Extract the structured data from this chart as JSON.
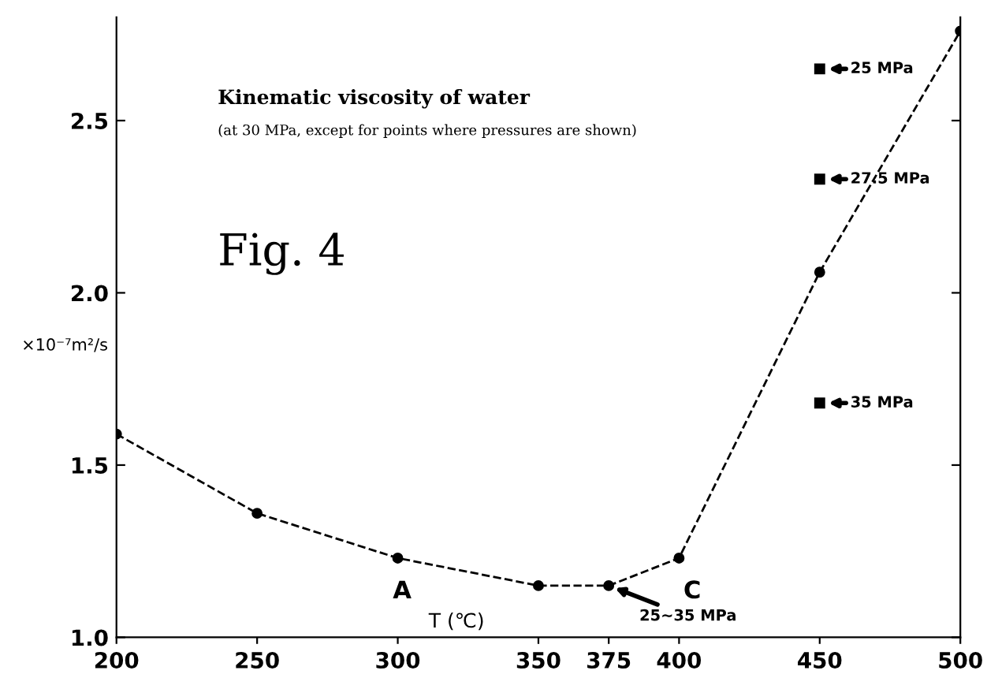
{
  "chart_data": {
    "type": "line",
    "title": "Kinematic viscosity of water",
    "subtitle": "(at 30 MPa, except for points where pressures are shown)",
    "xlabel": "T (℃)",
    "ylabel": "×10⁻⁷m²/s",
    "x": [
      200,
      250,
      300,
      350,
      375,
      400,
      450,
      500
    ],
    "series": [
      {
        "color": "#000000",
        "marker": "circle",
        "line_style": "dashed",
        "values": [
          1.59,
          1.36,
          1.23,
          1.15,
          1.15,
          1.23,
          2.06,
          2.76
        ]
      },
      {
        "type": "scatter",
        "color": "#000000",
        "marker": "square",
        "values": [
          null,
          null,
          null,
          null,
          null,
          null,
          2.65,
          null
        ]
      },
      {
        "type": "scatter",
        "color": "#000000",
        "marker": "square",
        "values": [
          null,
          null,
          null,
          null,
          null,
          null,
          2.33,
          null
        ]
      },
      {
        "type": "scatter",
        "color": "#000000",
        "marker": "square",
        "values": [
          null,
          null,
          null,
          null,
          null,
          null,
          1.68,
          null
        ]
      }
    ],
    "annotations": [
      "Fig. 4",
      {
        "text": "A",
        "x": 300,
        "y": 1.23
      },
      {
        "text": "C",
        "x": 400,
        "y": 1.23
      },
      {
        "text": "25~35 MPa",
        "x": 375,
        "y": 1.15
      },
      {
        "text": "25 MPa",
        "x": 450,
        "y": 2.65
      },
      {
        "text": "27.5 MPa",
        "x": 450,
        "y": 2.33
      },
      {
        "text": "35 MPa",
        "x": 450,
        "y": 1.68
      }
    ],
    "xlim": [
      200,
      500
    ],
    "xticks": [
      200,
      250,
      300,
      350,
      375,
      400,
      450,
      500
    ],
    "ylim": [
      1.0,
      2.8
    ],
    "yticks": [
      {
        "value": 1,
        "label": "1.0"
      },
      1.5,
      {
        "value": 2,
        "label": "2.0"
      },
      2.5
    ],
    "grid": false,
    "legend": false
  }
}
